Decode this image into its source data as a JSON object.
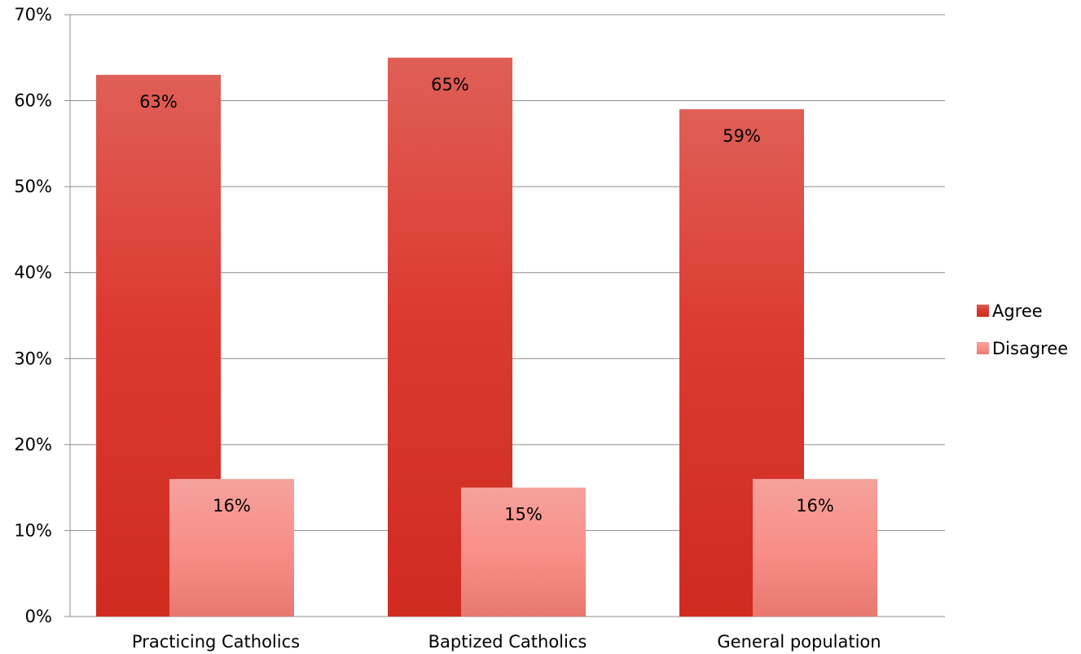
{
  "chart_data": {
    "type": "bar",
    "categories": [
      "Practicing Catholics",
      "Baptized Catholics",
      "General population"
    ],
    "series": [
      {
        "name": "Agree",
        "values": [
          63,
          65,
          59
        ],
        "labels": [
          "63%",
          "65%",
          "59%"
        ],
        "color": "#d9322a"
      },
      {
        "name": "Disagree",
        "values": [
          16,
          15,
          16
        ],
        "labels": [
          "16%",
          "15%",
          "16%"
        ],
        "color": "#f7908b"
      }
    ],
    "title": "",
    "xlabel": "",
    "ylabel": "",
    "ylim": [
      0,
      70
    ],
    "yticks": [
      0,
      10,
      20,
      30,
      40,
      50,
      60,
      70
    ],
    "ytick_labels": [
      "0%",
      "10%",
      "20%",
      "30%",
      "40%",
      "50%",
      "60%",
      "70%"
    ],
    "grid": true,
    "legend_position": "right"
  }
}
